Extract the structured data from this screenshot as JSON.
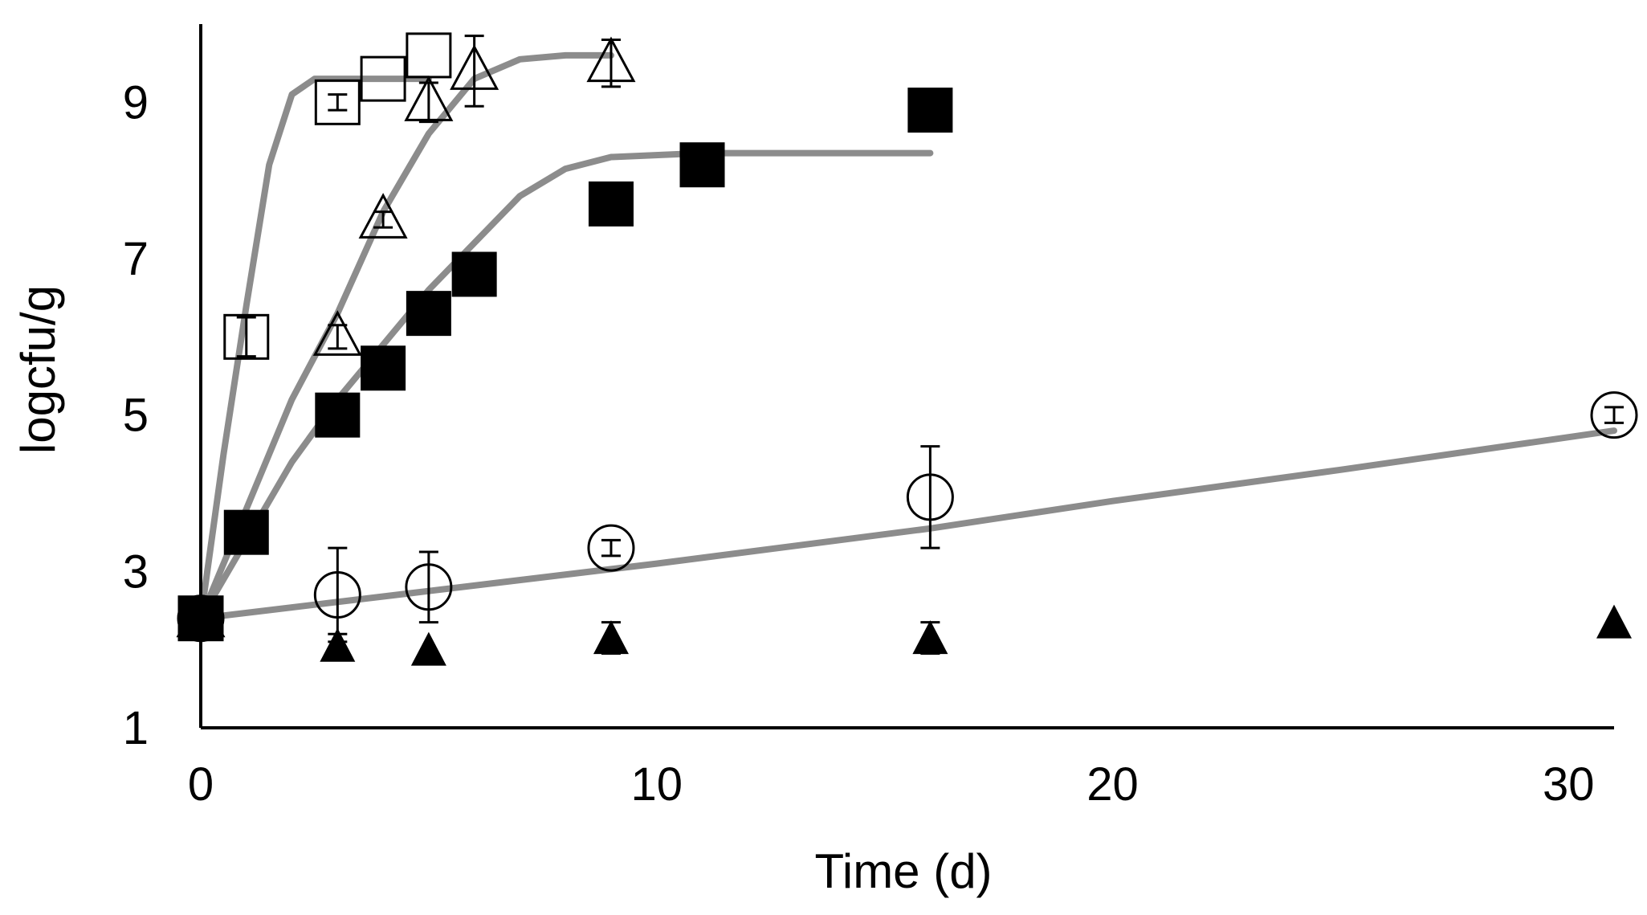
{
  "chart_data": {
    "type": "scatter",
    "title": "",
    "xlabel": "Time (d)",
    "ylabel": "logcfu/g",
    "xlim": [
      0,
      31
    ],
    "ylim": [
      1,
      10
    ],
    "xticks": [
      0,
      10,
      20,
      30
    ],
    "yticks": [
      1,
      3,
      5,
      7,
      9
    ],
    "grid": false,
    "colors": {
      "fit": "#8c8c8c",
      "marker": "#000000",
      "marker_fill_open": "#ffffff"
    },
    "series": [
      {
        "name": "open-square",
        "marker": "square-open",
        "points": [
          {
            "x": 0,
            "y": 2.4
          },
          {
            "x": 1,
            "y": 6.0,
            "err": 0.25
          },
          {
            "x": 3,
            "y": 9.0,
            "err": 0.1
          },
          {
            "x": 4,
            "y": 9.3
          },
          {
            "x": 5,
            "y": 9.6
          }
        ],
        "fit": [
          [
            0,
            2.4
          ],
          [
            0.5,
            4.5
          ],
          [
            1,
            6.4
          ],
          [
            1.5,
            8.2
          ],
          [
            2,
            9.1
          ],
          [
            2.5,
            9.3
          ],
          [
            4,
            9.3
          ],
          [
            5,
            9.3
          ]
        ]
      },
      {
        "name": "open-triangle",
        "marker": "triangle-open",
        "points": [
          {
            "x": 0,
            "y": 2.4
          },
          {
            "x": 3,
            "y": 6.0,
            "err": 0.15
          },
          {
            "x": 4,
            "y": 7.5,
            "err": 0.1
          },
          {
            "x": 5,
            "y": 9.0,
            "err": 0.25
          },
          {
            "x": 6,
            "y": 9.4,
            "err": 0.45
          },
          {
            "x": 9,
            "y": 9.5,
            "err": 0.3
          }
        ],
        "fit": [
          [
            0,
            2.4
          ],
          [
            1,
            3.8
          ],
          [
            2,
            5.2
          ],
          [
            3,
            6.3
          ],
          [
            4,
            7.6
          ],
          [
            5,
            8.6
          ],
          [
            6,
            9.3
          ],
          [
            7,
            9.55
          ],
          [
            8,
            9.6
          ],
          [
            9,
            9.6
          ]
        ]
      },
      {
        "name": "filled-square",
        "marker": "square-filled",
        "points": [
          {
            "x": 0,
            "y": 2.4
          },
          {
            "x": 1,
            "y": 3.5
          },
          {
            "x": 3,
            "y": 5.0
          },
          {
            "x": 4,
            "y": 5.6
          },
          {
            "x": 5,
            "y": 6.3
          },
          {
            "x": 6,
            "y": 6.8
          },
          {
            "x": 9,
            "y": 7.7
          },
          {
            "x": 11,
            "y": 8.2
          },
          {
            "x": 16,
            "y": 8.9
          }
        ],
        "fit": [
          [
            0,
            2.4
          ],
          [
            1,
            3.4
          ],
          [
            2,
            4.4
          ],
          [
            3,
            5.2
          ],
          [
            4,
            5.9
          ],
          [
            5,
            6.6
          ],
          [
            6,
            7.2
          ],
          [
            7,
            7.8
          ],
          [
            8,
            8.15
          ],
          [
            9,
            8.3
          ],
          [
            11,
            8.35
          ],
          [
            16,
            8.35
          ]
        ]
      },
      {
        "name": "open-circle",
        "marker": "circle-open",
        "points": [
          {
            "x": 0,
            "y": 2.4
          },
          {
            "x": 3,
            "y": 2.7,
            "err": 0.6
          },
          {
            "x": 5,
            "y": 2.8,
            "err": 0.45
          },
          {
            "x": 9,
            "y": 3.3,
            "err": 0.1
          },
          {
            "x": 16,
            "y": 3.95,
            "err": 0.65
          },
          {
            "x": 31,
            "y": 5.0,
            "err": 0.1
          }
        ],
        "fit": [
          [
            0,
            2.4
          ],
          [
            5,
            2.75
          ],
          [
            10,
            3.1
          ],
          [
            16,
            3.55
          ],
          [
            20,
            3.9
          ],
          [
            25,
            4.3
          ],
          [
            31,
            4.8
          ]
        ]
      },
      {
        "name": "filled-triangle",
        "marker": "triangle-filled",
        "points": [
          {
            "x": 3,
            "y": 2.05,
            "err": 0.15
          },
          {
            "x": 5,
            "y": 2.0
          },
          {
            "x": 9,
            "y": 2.15,
            "err": 0.2
          },
          {
            "x": 16,
            "y": 2.15,
            "err": 0.2
          },
          {
            "x": 31,
            "y": 2.35
          }
        ],
        "fit": []
      }
    ]
  }
}
